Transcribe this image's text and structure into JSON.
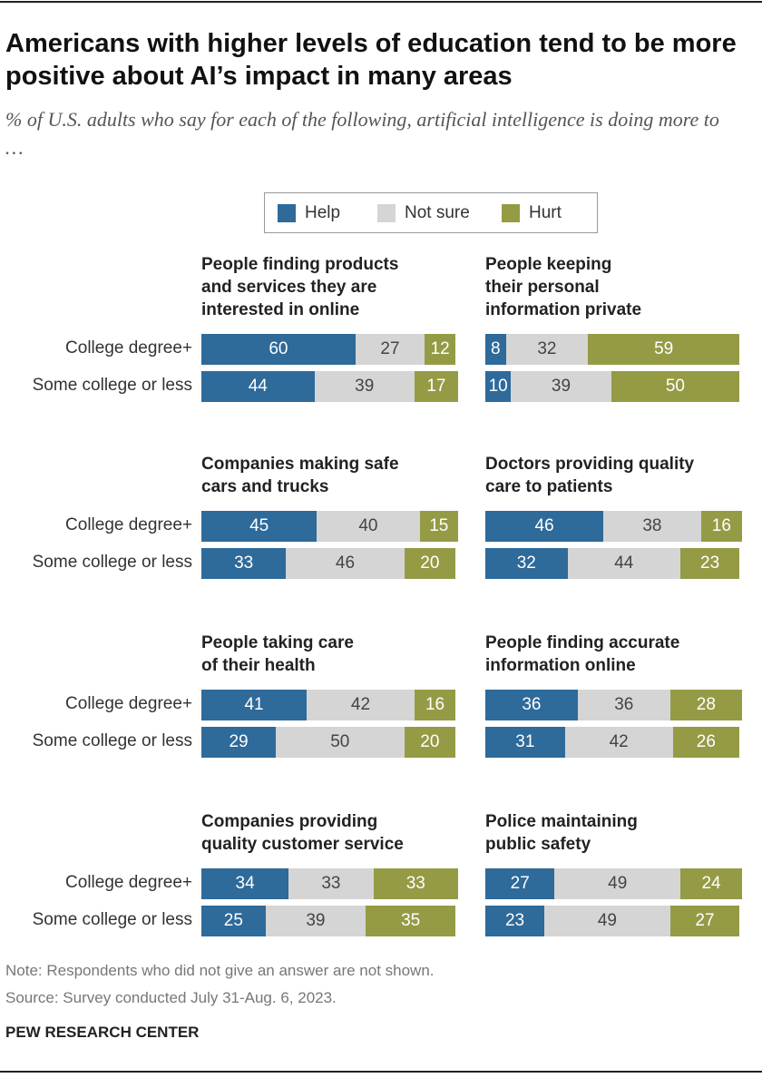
{
  "title": "Americans with higher levels of education tend to be more positive about AI’s impact in many areas",
  "subtitle": "% of U.S. adults who say for each of the following, artificial intelligence is doing more to …",
  "legend": {
    "series": [
      {
        "name": "Help",
        "color": "#2e6a9a"
      },
      {
        "name": "Not sure",
        "color": "#d5d5d5"
      },
      {
        "name": "Hurt",
        "color": "#959b45"
      }
    ]
  },
  "note": "Note: Respondents who did not give an answer are not shown.",
  "source": "Source: Survey conducted July 31-Aug. 6, 2023.",
  "footer": "PEW RESEARCH CENTER",
  "chart_data": [
    {
      "type": "bar",
      "orientation": "horizontal",
      "stacked": true,
      "title": [
        "People finding products",
        "and services they are",
        "interested in online"
      ],
      "categories": [
        "College degree+",
        "Some college or less"
      ],
      "series": [
        {
          "values": [
            60,
            44
          ]
        },
        {
          "values": [
            27,
            39
          ]
        },
        {
          "values": [
            12,
            17
          ]
        }
      ]
    },
    {
      "type": "bar",
      "orientation": "horizontal",
      "stacked": true,
      "title": [
        "People keeping",
        "their personal",
        "information private"
      ],
      "series": [
        {
          "values": [
            8,
            10
          ]
        },
        {
          "values": [
            32,
            39
          ]
        },
        {
          "values": [
            59,
            50
          ]
        }
      ]
    },
    {
      "type": "bar",
      "orientation": "horizontal",
      "stacked": true,
      "title": [
        "Companies making safe",
        "cars and trucks"
      ],
      "categories": [
        "College degree+",
        "Some college or less"
      ],
      "series": [
        {
          "values": [
            45,
            33
          ]
        },
        {
          "values": [
            40,
            46
          ]
        },
        {
          "values": [
            15,
            20
          ]
        }
      ]
    },
    {
      "type": "bar",
      "orientation": "horizontal",
      "stacked": true,
      "title": [
        "Doctors providing quality",
        "care to patients"
      ],
      "series": [
        {
          "values": [
            46,
            32
          ]
        },
        {
          "values": [
            38,
            44
          ]
        },
        {
          "values": [
            16,
            23
          ]
        }
      ]
    },
    {
      "type": "bar",
      "orientation": "horizontal",
      "stacked": true,
      "title": [
        "People taking care",
        "of their health"
      ],
      "categories": [
        "College degree+",
        "Some college or less"
      ],
      "series": [
        {
          "values": [
            41,
            29
          ]
        },
        {
          "values": [
            42,
            50
          ]
        },
        {
          "values": [
            16,
            20
          ]
        }
      ]
    },
    {
      "type": "bar",
      "orientation": "horizontal",
      "stacked": true,
      "title": [
        "People finding accurate",
        "information online"
      ],
      "series": [
        {
          "values": [
            36,
            31
          ]
        },
        {
          "values": [
            36,
            42
          ]
        },
        {
          "values": [
            28,
            26
          ]
        }
      ]
    },
    {
      "type": "bar",
      "orientation": "horizontal",
      "stacked": true,
      "title": [
        "Companies providing",
        "quality customer service"
      ],
      "categories": [
        "College degree+",
        "Some college or less"
      ],
      "series": [
        {
          "values": [
            34,
            25
          ]
        },
        {
          "values": [
            33,
            39
          ]
        },
        {
          "values": [
            33,
            35
          ]
        }
      ]
    },
    {
      "type": "bar",
      "orientation": "horizontal",
      "stacked": true,
      "title": [
        "Police maintaining",
        "public safety"
      ],
      "series": [
        {
          "values": [
            27,
            23
          ]
        },
        {
          "values": [
            49,
            49
          ]
        },
        {
          "values": [
            24,
            27
          ]
        }
      ]
    }
  ]
}
